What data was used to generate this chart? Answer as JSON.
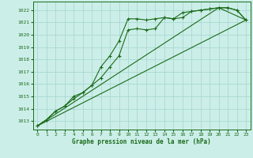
{
  "title": "Graphe pression niveau de la mer (hPa)",
  "bg_color": "#cceee8",
  "grid_color": "#aad8d2",
  "line_color": "#1a6b1a",
  "xlim": [
    -0.5,
    23.5
  ],
  "ylim": [
    1012.3,
    1022.7
  ],
  "yticks": [
    1013,
    1014,
    1015,
    1016,
    1017,
    1018,
    1019,
    1020,
    1021,
    1022
  ],
  "xticks": [
    0,
    1,
    2,
    3,
    4,
    5,
    6,
    7,
    8,
    9,
    10,
    11,
    12,
    13,
    14,
    15,
    16,
    17,
    18,
    19,
    20,
    21,
    22,
    23
  ],
  "series1": {
    "x": [
      0,
      1,
      2,
      3,
      4,
      5,
      6,
      7,
      8,
      9,
      10,
      11,
      12,
      13,
      14,
      15,
      16,
      17,
      18,
      19,
      20,
      21,
      22,
      23
    ],
    "y": [
      1012.6,
      1013.1,
      1013.8,
      1014.2,
      1015.0,
      1015.3,
      1015.9,
      1017.4,
      1018.3,
      1019.5,
      1021.3,
      1021.3,
      1021.2,
      1021.3,
      1021.4,
      1021.3,
      1021.8,
      1021.9,
      1022.0,
      1022.1,
      1022.2,
      1022.2,
      1022.0,
      1021.2
    ]
  },
  "series2": {
    "x": [
      0,
      1,
      2,
      3,
      4,
      5,
      6,
      7,
      8,
      9,
      10,
      11,
      12,
      13,
      14,
      15,
      16,
      17,
      18,
      19,
      20,
      21,
      22,
      23
    ],
    "y": [
      1012.6,
      1013.1,
      1013.8,
      1014.2,
      1014.8,
      1015.3,
      1015.9,
      1016.5,
      1017.4,
      1018.3,
      1020.4,
      1020.5,
      1020.4,
      1020.5,
      1021.4,
      1021.3,
      1021.4,
      1021.9,
      1022.0,
      1022.1,
      1022.2,
      1022.2,
      1022.0,
      1021.2
    ]
  },
  "series3": {
    "x": [
      0,
      23
    ],
    "y": [
      1012.6,
      1021.2
    ]
  },
  "series4": {
    "x": [
      0,
      20,
      23
    ],
    "y": [
      1012.6,
      1022.2,
      1021.2
    ]
  }
}
